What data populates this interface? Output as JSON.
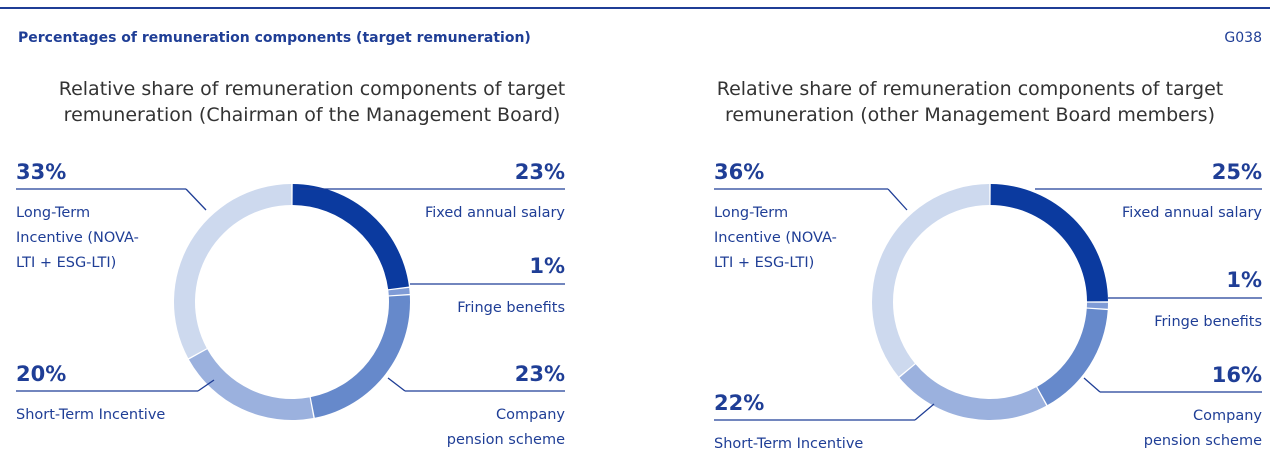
{
  "header": {
    "title": "Percentages of remuneration components (target remuneration)",
    "code": "G038"
  },
  "chart_data": [
    {
      "type": "pie",
      "donut": true,
      "title": "Relative share of remuneration components of target remuneration (Chairman of the Management Board)",
      "categories": [
        "Fixed annual salary",
        "Fringe benefits",
        "Company pension scheme",
        "Short-Term Incentive",
        "Long-Term Incentive (NOVA-LTI + ESG-LTI)"
      ],
      "values": [
        23,
        1,
        23,
        20,
        33
      ],
      "value_labels": [
        "23%",
        "1%",
        "23%",
        "20%",
        "33%"
      ],
      "colors": [
        "#0b3a9f",
        "#7f9bd6",
        "#6689cb",
        "#9bb1de",
        "#cdd9ee"
      ]
    },
    {
      "type": "pie",
      "donut": true,
      "title": "Relative share of remuneration components of target remuneration (other Management Board members)",
      "categories": [
        "Fixed annual salary",
        "Fringe benefits",
        "Company pension scheme",
        "Short-Term Incentive",
        "Long-Term Incentive (NOVA-LTI + ESG-LTI)"
      ],
      "values": [
        25,
        1,
        16,
        22,
        36
      ],
      "value_labels": [
        "25%",
        "1%",
        "16%",
        "22%",
        "36%"
      ],
      "colors": [
        "#0b3a9f",
        "#7f9bd6",
        "#6689cb",
        "#9bb1de",
        "#cdd9ee"
      ]
    }
  ]
}
